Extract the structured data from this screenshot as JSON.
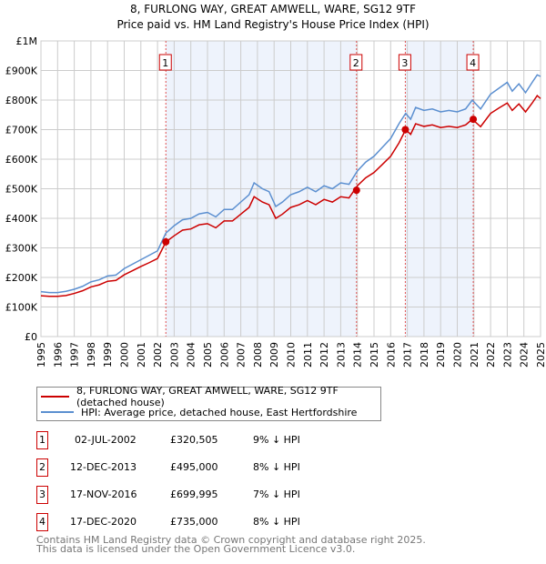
{
  "title": "8, FURLONG WAY, GREAT AMWELL, WARE, SG12 9TF",
  "subtitle": "Price paid vs. HM Land Registry's House Price Index (HPI)",
  "colors": {
    "property": "#cc0000",
    "hpi": "#5b8fd0",
    "shade": "#eef3fc"
  },
  "chart_data": {
    "type": "line",
    "xlim": [
      1995,
      2025
    ],
    "ylim": [
      0,
      1000000
    ],
    "x_ticks": [
      "1995",
      "1996",
      "1997",
      "1998",
      "1999",
      "2000",
      "2001",
      "2002",
      "2003",
      "2004",
      "2005",
      "2006",
      "2007",
      "2008",
      "2009",
      "2010",
      "2011",
      "2012",
      "2013",
      "2014",
      "2015",
      "2016",
      "2017",
      "2018",
      "2019",
      "2020",
      "2021",
      "2022",
      "2023",
      "2024",
      "2025"
    ],
    "y_ticks": [
      {
        "v": 0,
        "label": "£0"
      },
      {
        "v": 100000,
        "label": "£100K"
      },
      {
        "v": 200000,
        "label": "£200K"
      },
      {
        "v": 300000,
        "label": "£300K"
      },
      {
        "v": 400000,
        "label": "£400K"
      },
      {
        "v": 500000,
        "label": "£500K"
      },
      {
        "v": 600000,
        "label": "£600K"
      },
      {
        "v": 700000,
        "label": "£700K"
      },
      {
        "v": 800000,
        "label": "£800K"
      },
      {
        "v": 900000,
        "label": "£900K"
      },
      {
        "v": 1000000,
        "label": "£1M"
      }
    ],
    "x": [
      1995.0,
      1995.5,
      1996.0,
      1996.5,
      1997.0,
      1997.5,
      1998.0,
      1998.5,
      1999.0,
      1999.5,
      2000.0,
      2000.5,
      2001.0,
      2001.5,
      2002.0,
      2002.5,
      2003.0,
      2003.5,
      2004.0,
      2004.5,
      2005.0,
      2005.5,
      2006.0,
      2006.5,
      2007.0,
      2007.5,
      2007.8,
      2008.3,
      2008.7,
      2009.1,
      2009.5,
      2010.0,
      2010.5,
      2011.0,
      2011.5,
      2012.0,
      2012.5,
      2013.0,
      2013.5,
      2014.0,
      2014.5,
      2015.0,
      2015.5,
      2016.0,
      2016.5,
      2016.9,
      2017.2,
      2017.5,
      2018.0,
      2018.5,
      2019.0,
      2019.5,
      2020.0,
      2020.5,
      2020.9,
      2021.4,
      2022.0,
      2022.5,
      2023.0,
      2023.3,
      2023.7,
      2024.1,
      2024.5,
      2024.8,
      2025.0
    ],
    "series": [
      {
        "name": "8, FURLONG WAY, GREAT AMWELL, WARE, SG12 9TF (detached house)",
        "color": "#cc0000",
        "values": [
          138000,
          136000,
          136000,
          139000,
          146000,
          155000,
          168000,
          175000,
          187000,
          190000,
          209000,
          223000,
          237000,
          250000,
          264000,
          320000,
          341000,
          360000,
          364000,
          378000,
          382000,
          368000,
          391000,
          391000,
          414000,
          437000,
          473000,
          455000,
          446000,
          400000,
          414000,
          437000,
          446000,
          460000,
          446000,
          464000,
          455000,
          473000,
          469000,
          510000,
          537000,
          555000,
          582000,
          610000,
          655000,
          700000,
          684000,
          720000,
          711000,
          716000,
          707000,
          711000,
          707000,
          716000,
          735000,
          710000,
          755000,
          773000,
          790000,
          765000,
          787000,
          760000,
          790000,
          815000,
          805000
        ]
      },
      {
        "name": "HPI: Average price, detached house, East Hertfordshire",
        "color": "#5b8fd0",
        "values": [
          152000,
          149000,
          149000,
          153000,
          160000,
          170000,
          185000,
          192000,
          205000,
          208000,
          230000,
          245000,
          260000,
          275000,
          290000,
          350000,
          375000,
          395000,
          400000,
          415000,
          420000,
          405000,
          430000,
          430000,
          455000,
          480000,
          520000,
          500000,
          490000,
          440000,
          455000,
          480000,
          490000,
          505000,
          490000,
          510000,
          500000,
          520000,
          515000,
          560000,
          590000,
          610000,
          640000,
          670000,
          720000,
          755000,
          735000,
          775000,
          765000,
          770000,
          760000,
          765000,
          760000,
          770000,
          800000,
          770000,
          820000,
          840000,
          860000,
          830000,
          855000,
          825000,
          860000,
          885000,
          880000
        ]
      }
    ],
    "sales": [
      {
        "label": "1",
        "date": "02-JUL-2002",
        "x": 2002.5,
        "price": "£320,505",
        "value": 320505,
        "hpi": "9% ↓ HPI"
      },
      {
        "label": "2",
        "date": "12-DEC-2013",
        "x": 2013.95,
        "price": "£495,000",
        "value": 495000,
        "hpi": "8% ↓ HPI"
      },
      {
        "label": "3",
        "date": "17-NOV-2016",
        "x": 2016.88,
        "price": "£699,995",
        "value": 699995,
        "hpi": "7% ↓ HPI"
      },
      {
        "label": "4",
        "date": "17-DEC-2020",
        "x": 2020.96,
        "price": "£735,000",
        "value": 735000,
        "hpi": "8% ↓ HPI"
      }
    ],
    "shaded_ranges": [
      [
        2002.5,
        2013.95
      ],
      [
        2016.88,
        2020.96
      ]
    ],
    "grid": true
  },
  "legend": {
    "property": "8, FURLONG WAY, GREAT AMWELL, WARE, SG12 9TF (detached house)",
    "hpi": "HPI: Average price, detached house, East Hertfordshire"
  },
  "footer": {
    "line1": "Contains HM Land Registry data © Crown copyright and database right 2025.",
    "line2": "This data is licensed under the Open Government Licence v3.0."
  }
}
